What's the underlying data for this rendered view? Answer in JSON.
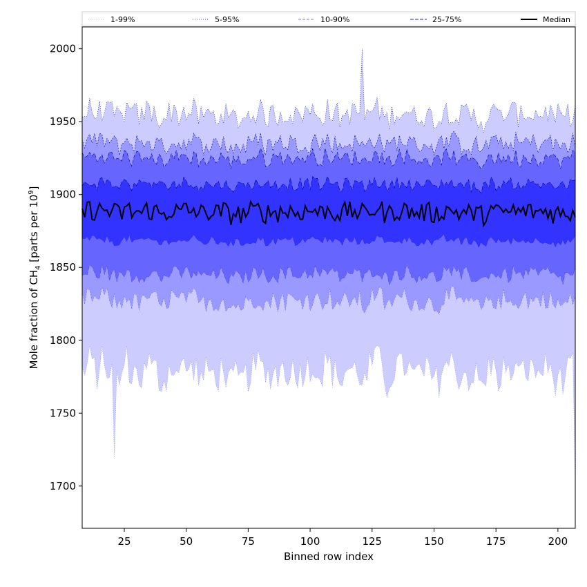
{
  "chart_data": {
    "type": "area",
    "title": "",
    "xlabel": "Binned row index",
    "ylabel_main": "Mole fraction of CH",
    "ylabel_sub": "4",
    "ylabel_unit": " [parts per 10",
    "ylabel_sup": "9",
    "ylabel_close": "]",
    "xlim": [
      8,
      207
    ],
    "ylim": [
      1671,
      2015
    ],
    "xticks": [
      25,
      50,
      75,
      100,
      125,
      150,
      175,
      200
    ],
    "yticks": [
      1700,
      1750,
      1800,
      1850,
      1900,
      1950,
      2000
    ],
    "grid": false,
    "legend_position": "top",
    "colors": {
      "band_1_99": "#ccccff",
      "band_5_95": "#9999ff",
      "band_10_90": "#6666ff",
      "band_25_75": "#3333ff",
      "edge": "#00008b",
      "median": "#000000"
    },
    "legend": [
      {
        "label": "1-99%",
        "style": "dotted-light"
      },
      {
        "label": "5-95%",
        "style": "dotted"
      },
      {
        "label": "10-90%",
        "style": "dashed-light"
      },
      {
        "label": "25-75%",
        "style": "dashed"
      },
      {
        "label": "Median",
        "style": "solid"
      }
    ],
    "x_range": [
      8,
      207
    ],
    "bands": [
      {
        "name": "1-99%",
        "lower_mean": 1778,
        "upper_mean": 1955
      },
      {
        "name": "5-95%",
        "lower_mean": 1827,
        "upper_mean": 1935
      },
      {
        "name": "10-90%",
        "lower_mean": 1845,
        "upper_mean": 1925
      },
      {
        "name": "25-75%",
        "lower_mean": 1868,
        "upper_mean": 1907
      }
    ],
    "median_mean": 1888,
    "annotated_points": [
      {
        "x": 21,
        "series": "1%",
        "y": 1719
      },
      {
        "x": 121,
        "series": "99%",
        "y": 2000
      },
      {
        "x": 207,
        "series": "1%",
        "y": 1700
      }
    ]
  }
}
